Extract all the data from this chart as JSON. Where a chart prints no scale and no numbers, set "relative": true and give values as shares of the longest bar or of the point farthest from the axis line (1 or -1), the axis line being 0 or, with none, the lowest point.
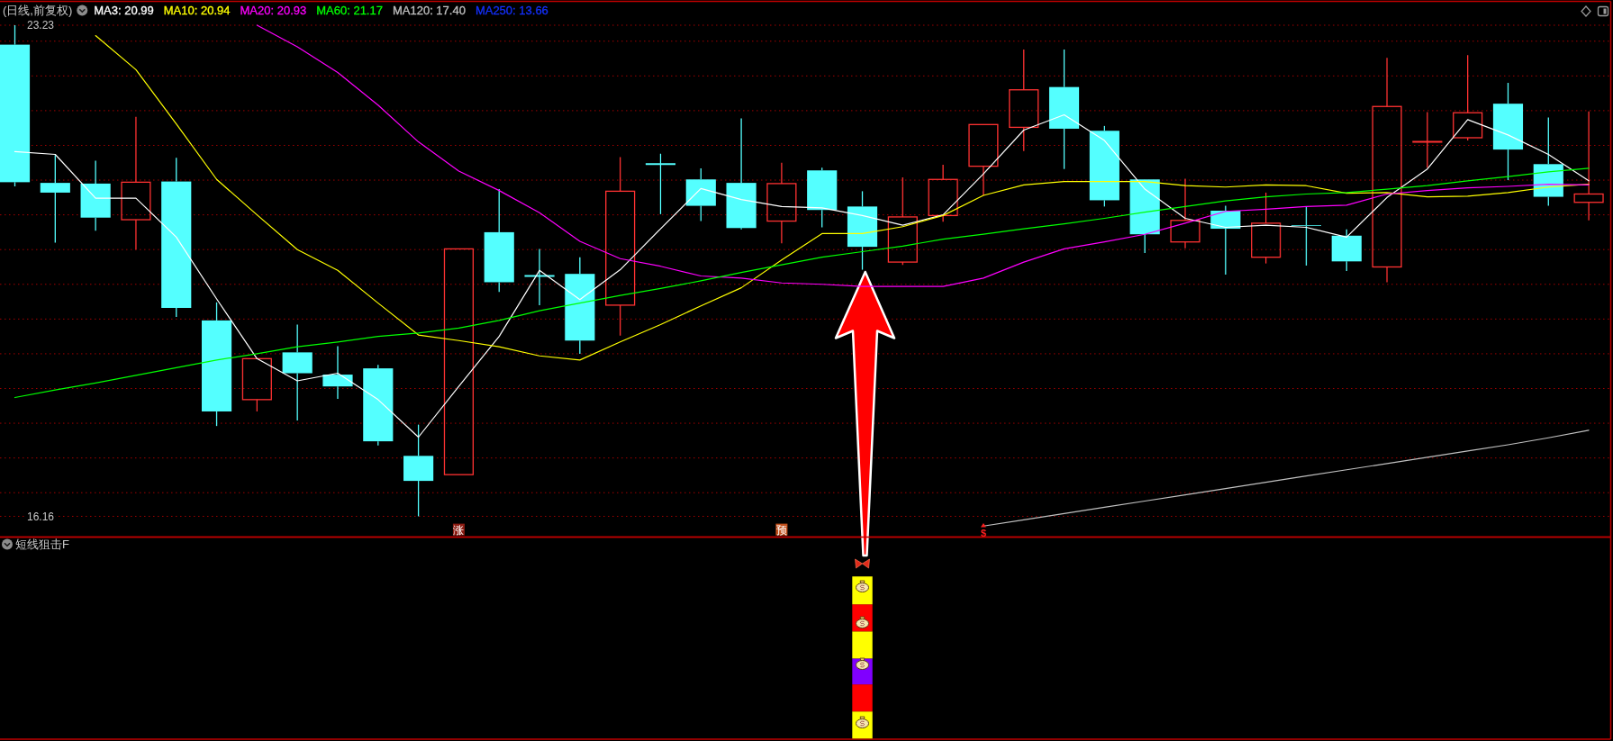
{
  "chart_data": [
    {
      "type": "candlestick",
      "title": "(日线,前复权)",
      "legend": "top left",
      "grid": "y",
      "tick_labels": "y",
      "categories": [
        null,
        null,
        null,
        null,
        null,
        null,
        null,
        null,
        null,
        null,
        null,
        null,
        null,
        null,
        null,
        null,
        null,
        null,
        null,
        null,
        null,
        null,
        null,
        null,
        null,
        null,
        null,
        null,
        null,
        null,
        null,
        null,
        null,
        null,
        null,
        null,
        null,
        null,
        null,
        null
      ],
      "ylim": [
        15.86,
        23.23
      ],
      "yticks": [
        {
          "value": 16.16,
          "label": "16.16"
        },
        {
          "value": 16.5,
          "label": null
        },
        {
          "value": 17,
          "label": null
        },
        {
          "value": 17.5,
          "label": null
        },
        {
          "value": 18,
          "label": null
        },
        {
          "value": 18.5,
          "label": null
        },
        {
          "value": 19,
          "label": null
        },
        {
          "value": 19.5,
          "label": null
        },
        {
          "value": 20,
          "label": null
        },
        {
          "value": 20.5,
          "label": null
        },
        {
          "value": 21,
          "label": null
        },
        {
          "value": 21.5,
          "label": null
        },
        {
          "value": 22,
          "label": null
        },
        {
          "value": 22.5,
          "label": null
        },
        {
          "value": 23,
          "label": null
        },
        {
          "value": 23.23,
          "label": "23.23"
        }
      ],
      "ohlc": [
        [
          22.95,
          23.23,
          20.91,
          20.97
        ],
        [
          20.96,
          21.36,
          20.1,
          20.82
        ],
        [
          20.95,
          21.28,
          20.27,
          20.46
        ],
        [
          20.43,
          21.91,
          20.0,
          20.97
        ],
        [
          20.98,
          21.32,
          19.03,
          19.16
        ],
        [
          18.98,
          19.24,
          17.46,
          17.67
        ],
        [
          17.84,
          18.43,
          17.67,
          18.43
        ],
        [
          18.52,
          18.92,
          17.54,
          18.22
        ],
        [
          18.2,
          18.61,
          17.85,
          18.03
        ],
        [
          18.29,
          18.34,
          17.18,
          17.24
        ],
        [
          17.03,
          17.48,
          16.16,
          16.67
        ],
        [
          16.76,
          20.01,
          16.76,
          20.01
        ],
        [
          20.25,
          20.87,
          19.39,
          19.53
        ],
        [
          19.62,
          20.01,
          19.2,
          19.62
        ],
        [
          19.65,
          19.89,
          18.5,
          18.69
        ],
        [
          19.2,
          21.33,
          18.76,
          20.84
        ],
        [
          21.23,
          21.38,
          20.51,
          21.23
        ],
        [
          21.01,
          21.17,
          20.41,
          20.63
        ],
        [
          20.96,
          21.89,
          20.29,
          20.31
        ],
        [
          20.41,
          21.25,
          20.09,
          20.95
        ],
        [
          21.14,
          21.18,
          20.32,
          20.57
        ],
        [
          20.62,
          20.84,
          19.71,
          20.04
        ],
        [
          19.82,
          21.04,
          19.78,
          20.47
        ],
        [
          20.49,
          21.22,
          20.4,
          21.01
        ],
        [
          21.2,
          21.8,
          20.78,
          21.8
        ],
        [
          21.76,
          22.88,
          21.42,
          22.3
        ],
        [
          22.34,
          22.88,
          21.16,
          21.74
        ],
        [
          21.71,
          21.78,
          20.62,
          20.71
        ],
        [
          21.01,
          21.01,
          19.95,
          20.22
        ],
        [
          20.11,
          21.02,
          20.02,
          20.42
        ],
        [
          20.56,
          20.63,
          19.64,
          20.3
        ],
        [
          19.89,
          20.82,
          19.8,
          20.38
        ],
        [
          20.35,
          20.62,
          19.77,
          20.34
        ],
        [
          20.2,
          20.29,
          19.69,
          19.83
        ],
        [
          19.75,
          22.76,
          19.53,
          22.06
        ],
        [
          21.55,
          21.98,
          21.18,
          21.55
        ],
        [
          21.61,
          22.8,
          21.57,
          21.97
        ],
        [
          22.1,
          22.4,
          21.0,
          21.44
        ],
        [
          21.23,
          21.9,
          20.63,
          20.76
        ],
        [
          20.68,
          21.99,
          20.42,
          20.8
        ]
      ],
      "colors": [
        "#54ffff",
        "#54ffff",
        "#54ffff",
        "#ff3232",
        "#54ffff",
        "#54ffff",
        "#ff3232",
        "#54ffff",
        "#54ffff",
        "#54ffff",
        "#54ffff",
        "#ff3232",
        "#54ffff",
        "#54ffff",
        "#54ffff",
        "#ff3232",
        "#54ffff",
        "#54ffff",
        "#54ffff",
        "#ff3232",
        "#54ffff",
        "#54ffff",
        "#ff3232",
        "#ff3232",
        "#ff3232",
        "#ff3232",
        "#54ffff",
        "#54ffff",
        "#54ffff",
        "#ff3232",
        "#54ffff",
        "#ff3232",
        "#54ffff",
        "#54ffff",
        "#ff3232",
        "#ff3232",
        "#ff3232",
        "#54ffff",
        "#54ffff",
        "#ff3232"
      ],
      "series": [
        {
          "type": "line",
          "name": "MA3: 20.99",
          "color": "#ffffff",
          "values": [
            21.41,
            21.37,
            20.74,
            20.74,
            20.18,
            19.29,
            18.43,
            18.11,
            18.22,
            17.84,
            17.3,
            18.03,
            18.75,
            19.7,
            19.28,
            19.71,
            20.3,
            20.88,
            20.72,
            20.62,
            20.6,
            20.49,
            20.35,
            20.5,
            21.09,
            21.72,
            21.94,
            21.57,
            20.87,
            20.45,
            20.32,
            20.35,
            20.32,
            20.18,
            20.75,
            21.16,
            21.87,
            21.65,
            21.37,
            20.99
          ]
        },
        {
          "type": "line",
          "name": "MA10: 20.94",
          "color": "#ffff00",
          "values": [
            null,
            null,
            23.08,
            22.59,
            21.81,
            21.01,
            20.5,
            20.0,
            19.7,
            19.23,
            18.77,
            18.69,
            18.6,
            18.47,
            18.41,
            18.67,
            18.92,
            19.19,
            19.45,
            19.85,
            20.23,
            20.23,
            20.33,
            20.49,
            20.78,
            20.93,
            20.98,
            20.98,
            20.98,
            20.92,
            20.9,
            20.93,
            20.92,
            20.81,
            20.82,
            20.76,
            20.77,
            20.82,
            20.9,
            20.94
          ]
        },
        {
          "type": "line",
          "name": "MA20: 20.93",
          "color": "#ff00ff",
          "values": [
            null,
            null,
            null,
            null,
            null,
            null,
            23.23,
            22.92,
            22.55,
            22.08,
            21.55,
            21.13,
            20.85,
            20.53,
            20.12,
            19.87,
            19.76,
            19.62,
            19.59,
            19.52,
            19.5,
            19.47,
            19.47,
            19.47,
            19.59,
            19.82,
            20.01,
            20.11,
            20.22,
            20.38,
            20.55,
            20.58,
            20.62,
            20.64,
            20.8,
            20.85,
            20.89,
            20.91,
            20.94,
            20.93
          ]
        },
        {
          "type": "line",
          "name": "MA60: 21.17",
          "color": "#00ff00",
          "values": [
            17.87,
            17.98,
            18.08,
            18.19,
            18.3,
            18.41,
            18.5,
            18.6,
            18.67,
            18.75,
            18.8,
            18.87,
            18.98,
            19.12,
            19.23,
            19.34,
            19.44,
            19.55,
            19.67,
            19.78,
            19.89,
            19.97,
            20.05,
            20.15,
            20.22,
            20.3,
            20.37,
            20.45,
            20.54,
            20.62,
            20.7,
            20.76,
            20.8,
            20.82,
            20.87,
            20.92,
            20.99,
            21.05,
            21.12,
            21.17
          ]
        },
        {
          "type": "line",
          "name": "MA120: 17.40",
          "color": "#c0c0c0",
          "values": [
            null,
            null,
            null,
            null,
            null,
            null,
            null,
            null,
            null,
            null,
            null,
            null,
            null,
            null,
            null,
            null,
            null,
            null,
            null,
            null,
            null,
            null,
            null,
            null,
            16.02,
            16.11,
            16.2,
            16.29,
            16.38,
            16.47,
            16.56,
            16.65,
            16.74,
            16.83,
            16.92,
            17.01,
            17.1,
            17.19,
            17.29,
            17.4
          ]
        },
        {
          "type": "line",
          "name": "MA250: 13.66",
          "color": "#1430ff",
          "values": [
            null,
            null,
            null,
            null,
            null,
            null,
            null,
            null,
            null,
            null,
            null,
            null,
            null,
            null,
            null,
            null,
            null,
            null,
            null,
            null,
            null,
            null,
            null,
            null,
            null,
            null,
            null,
            null,
            null,
            null,
            null,
            null,
            null,
            null,
            null,
            null,
            null,
            null,
            null,
            null
          ]
        },
        {
          "type": "scatter",
          "marker": "square",
          "values": [
            null,
            null,
            null,
            null,
            null,
            null,
            null,
            null,
            null,
            null,
            null,
            15.97,
            null,
            null,
            null,
            null,
            null,
            null,
            null,
            15.97,
            null,
            null,
            null,
            null,
            null,
            null,
            null,
            null,
            null,
            null,
            null,
            null,
            null,
            null,
            null,
            null,
            null,
            null,
            null,
            null
          ],
          "value_labels": [
            null,
            null,
            null,
            null,
            null,
            null,
            null,
            null,
            null,
            null,
            null,
            "涨",
            null,
            null,
            null,
            null,
            null,
            null,
            null,
            "预",
            null,
            null,
            null,
            null,
            null,
            null,
            null,
            null,
            null,
            null,
            null,
            null,
            null,
            null,
            null,
            null,
            null,
            null,
            null,
            null
          ],
          "colors": [
            null,
            null,
            null,
            null,
            null,
            null,
            null,
            null,
            null,
            null,
            null,
            "#8c1c12",
            null,
            null,
            null,
            null,
            null,
            null,
            null,
            "#c2501c",
            null,
            null,
            null,
            null,
            null,
            null,
            null,
            null,
            null,
            null,
            null,
            null,
            null,
            null,
            null,
            null,
            null,
            null,
            null,
            null
          ]
        },
        {
          "type": "scatter",
          "marker": "triangle",
          "color": "#ff2020",
          "values": [
            null,
            null,
            null,
            null,
            null,
            null,
            null,
            null,
            null,
            null,
            null,
            null,
            null,
            null,
            null,
            null,
            null,
            null,
            null,
            null,
            null,
            null,
            null,
            null,
            16.03,
            null,
            null,
            null,
            null,
            null,
            null,
            null,
            null,
            null,
            null,
            null,
            null,
            null,
            null,
            null
          ],
          "value_labels": [
            null,
            null,
            null,
            null,
            null,
            null,
            null,
            null,
            null,
            null,
            null,
            null,
            null,
            null,
            null,
            null,
            null,
            null,
            null,
            null,
            null,
            null,
            null,
            null,
            "$",
            null,
            null,
            null,
            null,
            null,
            null,
            null,
            null,
            null,
            null,
            null,
            null,
            null,
            null,
            null
          ]
        }
      ]
    },
    {
      "type": "bar",
      "title": "短线狙击F",
      "stacked": true,
      "relative": true,
      "categories": [
        null,
        null,
        null,
        null,
        null,
        null,
        null,
        null,
        null,
        null,
        null,
        null,
        null,
        null,
        null,
        null,
        null,
        null,
        null,
        null,
        null,
        null,
        null,
        null,
        null,
        null,
        null,
        null,
        null,
        null,
        null,
        null,
        null,
        null,
        null,
        null,
        null,
        null,
        null,
        null
      ],
      "series": [
        {
          "color": "#ffff00",
          "values": [
            null,
            null,
            null,
            null,
            null,
            null,
            null,
            null,
            null,
            null,
            null,
            null,
            null,
            null,
            null,
            null,
            null,
            null,
            null,
            null,
            null,
            0.167,
            null,
            null,
            null,
            null,
            null,
            null,
            null,
            null,
            null,
            null,
            null,
            null,
            null,
            null,
            null,
            null,
            null,
            null
          ]
        },
        {
          "color": "#ff0000",
          "values": [
            null,
            null,
            null,
            null,
            null,
            null,
            null,
            null,
            null,
            null,
            null,
            null,
            null,
            null,
            null,
            null,
            null,
            null,
            null,
            null,
            null,
            0.167,
            null,
            null,
            null,
            null,
            null,
            null,
            null,
            null,
            null,
            null,
            null,
            null,
            null,
            null,
            null,
            null,
            null,
            null
          ]
        },
        {
          "color": "#8000ff",
          "values": [
            null,
            null,
            null,
            null,
            null,
            null,
            null,
            null,
            null,
            null,
            null,
            null,
            null,
            null,
            null,
            null,
            null,
            null,
            null,
            null,
            null,
            0.16,
            null,
            null,
            null,
            null,
            null,
            null,
            null,
            null,
            null,
            null,
            null,
            null,
            null,
            null,
            null,
            null,
            null,
            null
          ]
        },
        {
          "color": "#ffff00",
          "values": [
            null,
            null,
            null,
            null,
            null,
            null,
            null,
            null,
            null,
            null,
            null,
            null,
            null,
            null,
            null,
            null,
            null,
            null,
            null,
            null,
            null,
            0.167,
            null,
            null,
            null,
            null,
            null,
            null,
            null,
            null,
            null,
            null,
            null,
            null,
            null,
            null,
            null,
            null,
            null,
            null
          ]
        },
        {
          "color": "#ff0000",
          "values": [
            null,
            null,
            null,
            null,
            null,
            null,
            null,
            null,
            null,
            null,
            null,
            null,
            null,
            null,
            null,
            null,
            null,
            null,
            null,
            null,
            null,
            0.167,
            null,
            null,
            null,
            null,
            null,
            null,
            null,
            null,
            null,
            null,
            null,
            null,
            null,
            null,
            null,
            null,
            null,
            null
          ]
        },
        {
          "color": "#ffff00",
          "values": [
            null,
            null,
            null,
            null,
            null,
            null,
            null,
            null,
            null,
            null,
            null,
            null,
            null,
            null,
            null,
            null,
            null,
            null,
            null,
            null,
            null,
            0.172,
            null,
            null,
            null,
            null,
            null,
            null,
            null,
            null,
            null,
            null,
            null,
            null,
            null,
            null,
            null,
            null,
            null,
            null
          ]
        }
      ]
    }
  ]
}
